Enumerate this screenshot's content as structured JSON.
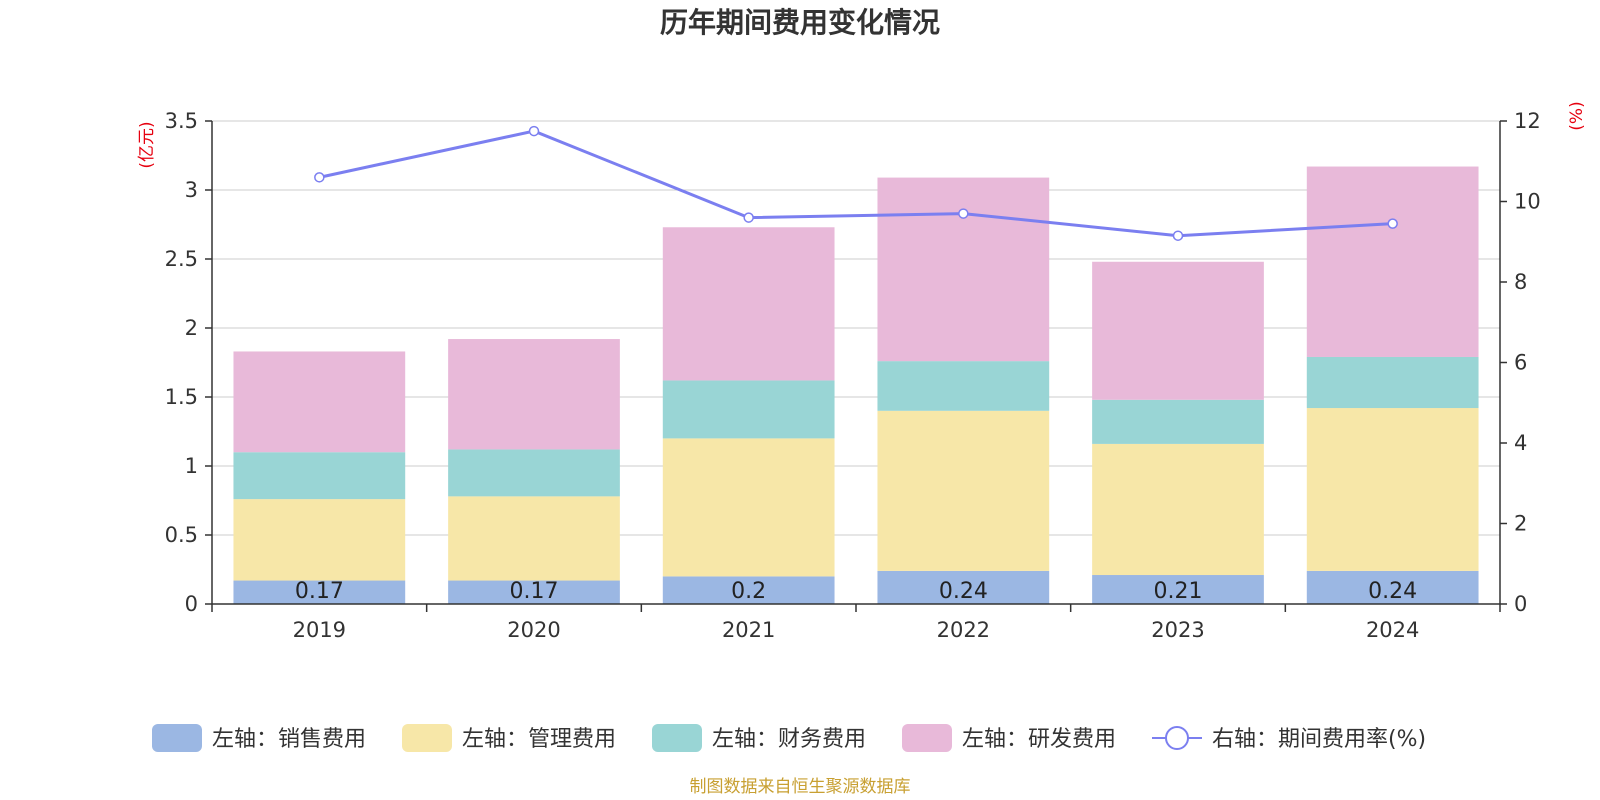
{
  "chart_data": {
    "type": "bar",
    "title": "历年期间费用变化情况",
    "categories": [
      "2019",
      "2020",
      "2021",
      "2022",
      "2023",
      "2024"
    ],
    "y_left": {
      "unit": "(亿元)",
      "ylim": [
        0,
        3.5
      ],
      "ticks": [
        "0",
        "0.5",
        "1",
        "1.5",
        "2",
        "2.5",
        "3",
        "3.5"
      ],
      "tick_values": [
        0,
        0.5,
        1,
        1.5,
        2,
        2.5,
        3,
        3.5
      ]
    },
    "y_right": {
      "unit": "(%)",
      "ylim": [
        0,
        12
      ],
      "ticks": [
        "0",
        "2",
        "4",
        "6",
        "8",
        "10",
        "12"
      ],
      "tick_values": [
        0,
        2,
        4,
        6,
        8,
        10,
        12
      ]
    },
    "stacked": true,
    "series": [
      {
        "name": "左轴：销售费用",
        "axis": "left",
        "type": "bar",
        "color": "#9bb7e3",
        "values": [
          0.17,
          0.17,
          0.2,
          0.24,
          0.21,
          0.24
        ],
        "labels": [
          "0.17",
          "0.17",
          "0.2",
          "0.24",
          "0.21",
          "0.24"
        ]
      },
      {
        "name": "左轴：管理费用",
        "axis": "left",
        "type": "bar",
        "color": "#f7e7a8",
        "values": [
          0.59,
          0.61,
          1.0,
          1.16,
          0.95,
          1.18
        ]
      },
      {
        "name": "左轴：财务费用",
        "axis": "left",
        "type": "bar",
        "color": "#99d5d5",
        "values": [
          0.34,
          0.34,
          0.42,
          0.36,
          0.32,
          0.37
        ]
      },
      {
        "name": "左轴：研发费用",
        "axis": "left",
        "type": "bar",
        "color": "#e8b9d9",
        "values": [
          0.73,
          0.8,
          1.11,
          1.33,
          1.0,
          1.38
        ]
      },
      {
        "name": "右轴：期间费用率(%)",
        "axis": "right",
        "type": "line",
        "color": "#7b7ff0",
        "values": [
          10.6,
          11.75,
          9.6,
          9.7,
          9.15,
          9.45
        ]
      }
    ],
    "legend_position": "bottom",
    "grid": true
  },
  "source_note": "制图数据来自恒生聚源数据库"
}
